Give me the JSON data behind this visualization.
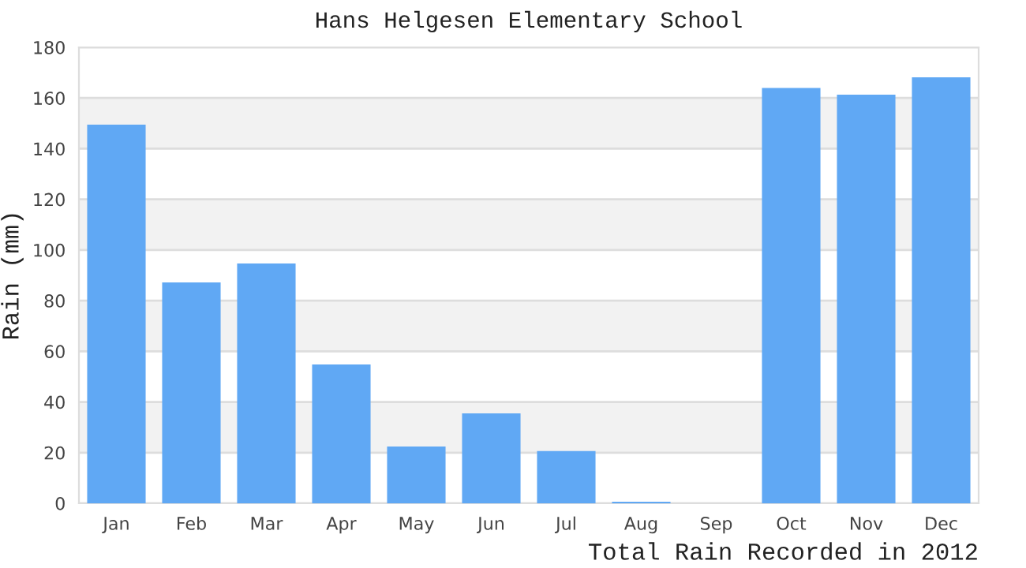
{
  "chart_data": {
    "type": "bar",
    "title": "Hans Helgesen Elementary School",
    "xlabel": "Total Rain Recorded in 2012",
    "ylabel": "Rain (mm)",
    "categories": [
      "Jan",
      "Feb",
      "Mar",
      "Apr",
      "May",
      "Jun",
      "Jul",
      "Aug",
      "Sep",
      "Oct",
      "Nov",
      "Dec"
    ],
    "values": [
      149.5,
      87.2,
      94.7,
      54.8,
      22.4,
      35.5,
      20.6,
      0.6,
      0,
      164,
      161.3,
      168.2
    ],
    "color": "#60a8f4",
    "ylim": [
      0,
      180
    ],
    "yticks": [
      0,
      20,
      40,
      60,
      80,
      100,
      120,
      140,
      160,
      180
    ],
    "grid": "y",
    "bands": [
      {
        "axis": "y",
        "from": 20,
        "to": 40,
        "color": "#f2f2f2"
      },
      {
        "axis": "y",
        "from": 60,
        "to": 80,
        "color": "#f2f2f2"
      },
      {
        "axis": "y",
        "from": 100,
        "to": 120,
        "color": "#f2f2f2"
      },
      {
        "axis": "y",
        "from": 140,
        "to": 160,
        "color": "#f2f2f2"
      }
    ]
  }
}
